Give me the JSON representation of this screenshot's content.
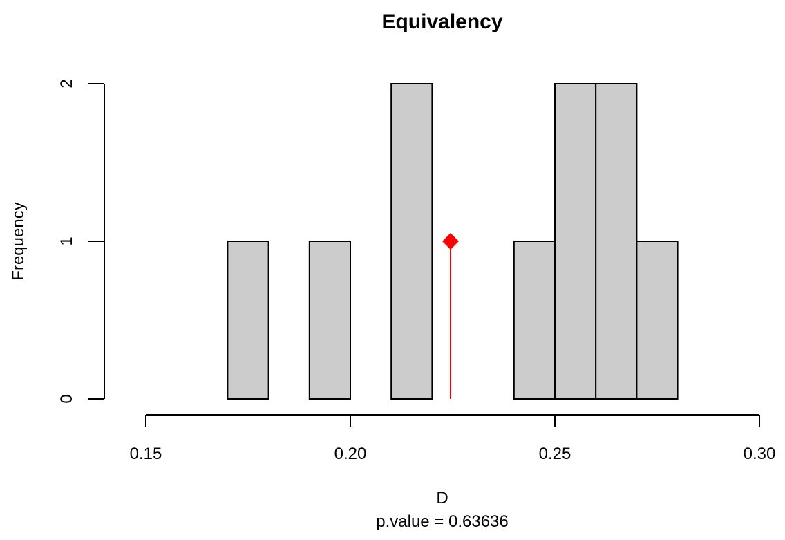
{
  "chart_data": {
    "type": "bar",
    "title": "Equivalency",
    "xlabel": "D",
    "ylabel": "Frequency",
    "subtitle": "p.value =  0.63636",
    "xlim": [
      0.15,
      0.3
    ],
    "ylim": [
      0,
      2
    ],
    "x_ticks": [
      0.15,
      0.2,
      0.25,
      0.3
    ],
    "x_tick_labels": [
      "0.15",
      "0.20",
      "0.25",
      "0.30"
    ],
    "y_ticks": [
      0,
      1,
      2
    ],
    "y_tick_labels": [
      "0",
      "1",
      "2"
    ],
    "bins": [
      {
        "x0": 0.17,
        "x1": 0.18,
        "count": 1
      },
      {
        "x0": 0.18,
        "x1": 0.19,
        "count": 0
      },
      {
        "x0": 0.19,
        "x1": 0.2,
        "count": 1
      },
      {
        "x0": 0.2,
        "x1": 0.21,
        "count": 0
      },
      {
        "x0": 0.21,
        "x1": 0.22,
        "count": 2
      },
      {
        "x0": 0.22,
        "x1": 0.23,
        "count": 0
      },
      {
        "x0": 0.23,
        "x1": 0.24,
        "count": 0
      },
      {
        "x0": 0.24,
        "x1": 0.25,
        "count": 1
      },
      {
        "x0": 0.25,
        "x1": 0.26,
        "count": 2
      },
      {
        "x0": 0.26,
        "x1": 0.27,
        "count": 2
      },
      {
        "x0": 0.27,
        "x1": 0.28,
        "count": 1
      }
    ],
    "observed": {
      "x": 0.2245,
      "y": 1
    },
    "colors": {
      "bar_fill": "#cccccc",
      "bar_stroke": "#000000",
      "observed": "#ff0000"
    },
    "grid": false
  }
}
